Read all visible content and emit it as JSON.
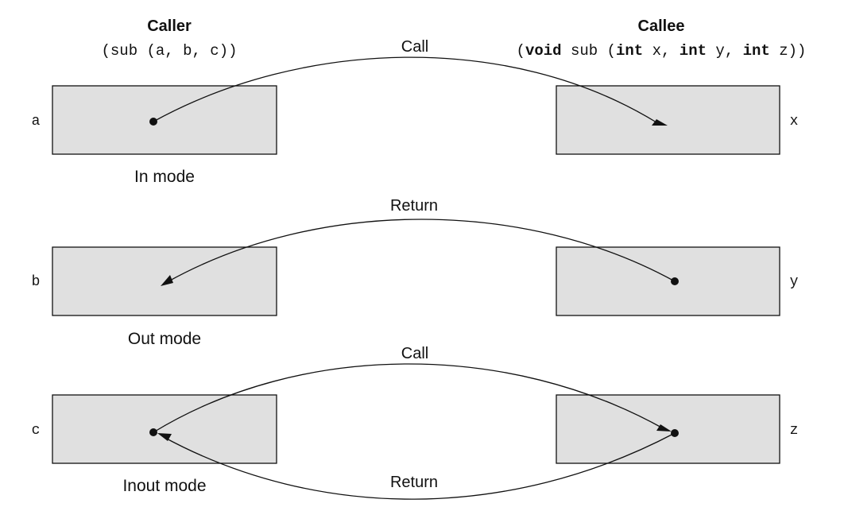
{
  "caller": {
    "title": "Caller",
    "signature": "(sub (a, b, c))"
  },
  "callee": {
    "title": "Callee",
    "signature_parts": [
      {
        "text": "(",
        "bold": false
      },
      {
        "text": "void",
        "bold": true
      },
      {
        "text": " sub (",
        "bold": false
      },
      {
        "text": "int",
        "bold": true
      },
      {
        "text": " x, ",
        "bold": false
      },
      {
        "text": "int",
        "bold": true
      },
      {
        "text": " y, ",
        "bold": false
      },
      {
        "text": "int",
        "bold": true
      },
      {
        "text": " z))",
        "bold": false
      }
    ]
  },
  "rows": [
    {
      "caller_var": "a",
      "callee_var": "x",
      "mode": "In mode",
      "top_label": "Call",
      "bottom_label": ""
    },
    {
      "caller_var": "b",
      "callee_var": "y",
      "mode": "Out mode",
      "top_label": "Return",
      "bottom_label": ""
    },
    {
      "caller_var": "c",
      "callee_var": "z",
      "mode": "Inout mode",
      "top_label": "Call",
      "bottom_label": "Return"
    }
  ],
  "colors": {
    "box_fill": "#e0e0e0",
    "stroke": "#111111"
  }
}
